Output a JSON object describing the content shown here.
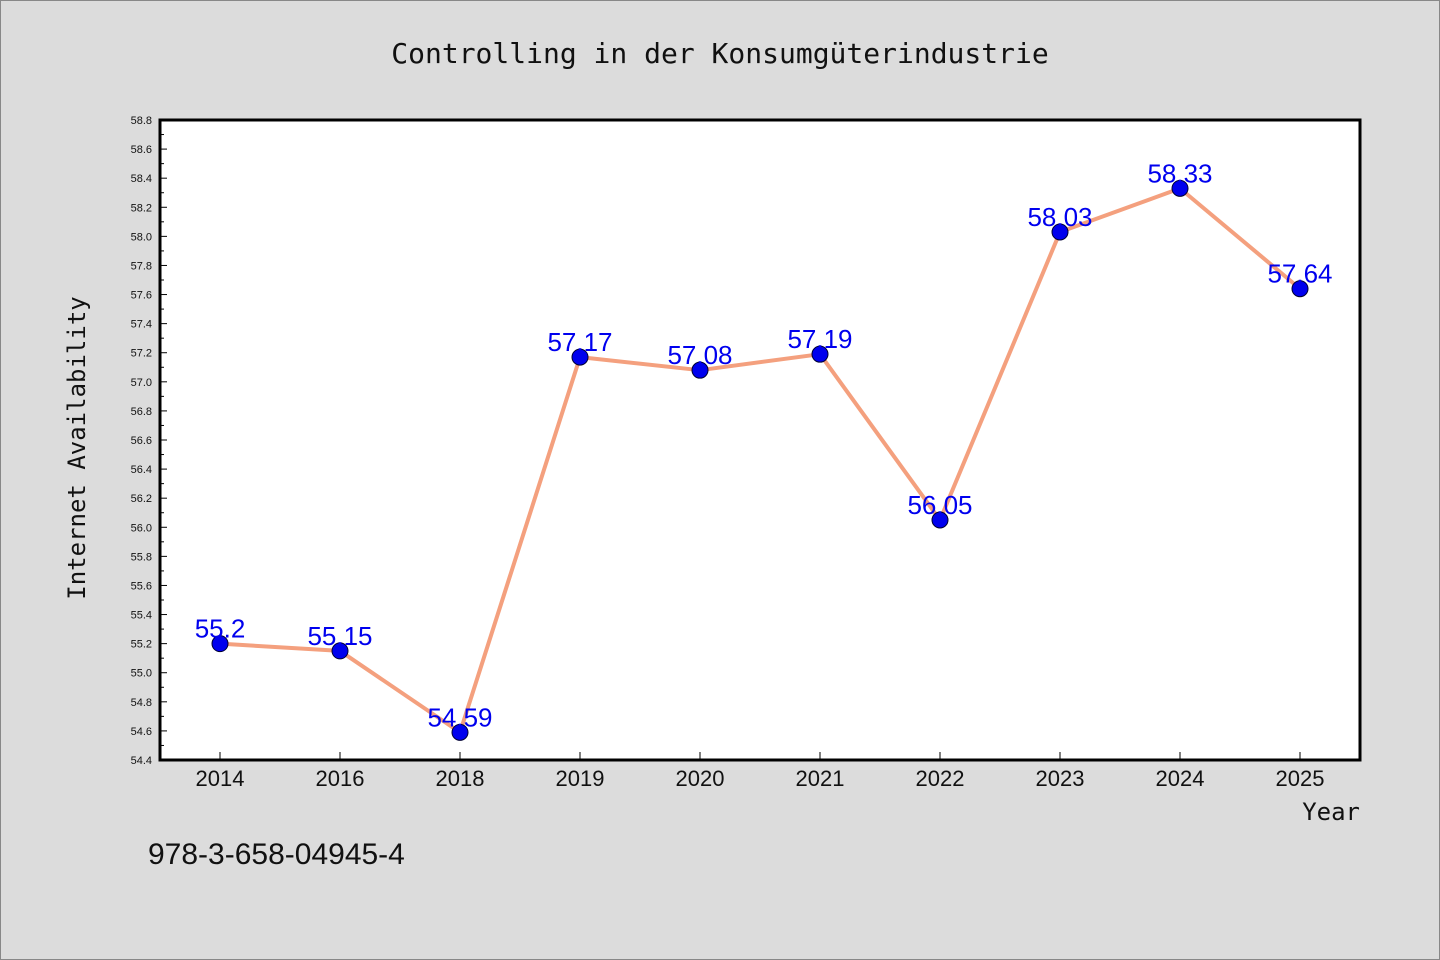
{
  "chart_data": {
    "type": "line",
    "title": "Controlling in der Konsumgüterindustrie",
    "xlabel": "Year",
    "ylabel": "Internet Availability",
    "categories": [
      "2014",
      "2016",
      "2018",
      "2019",
      "2020",
      "2021",
      "2022",
      "2023",
      "2024",
      "2025"
    ],
    "series": [
      {
        "values": [
          55.2,
          55.15,
          54.59,
          57.17,
          57.08,
          57.19,
          56.05,
          58.03,
          58.33,
          57.64
        ],
        "data_labels": [
          "55.2",
          "55.15",
          "54.59",
          "57.17",
          "57.08",
          "57.19",
          "56.05",
          "58.03",
          "58.33",
          "57.64"
        ]
      }
    ],
    "ylim": [
      54.4,
      58.8
    ],
    "yticks": [
      "54.4",
      "54.6",
      "54.8",
      "55.0",
      "55.2",
      "55.4",
      "55.6",
      "55.8",
      "56.0",
      "56.2",
      "56.4",
      "56.6",
      "56.8",
      "57.0",
      "57.2",
      "57.4",
      "57.6",
      "57.8",
      "58.0",
      "58.2",
      "58.4",
      "58.6",
      "58.8"
    ],
    "grid": false,
    "legend": "none",
    "colors": {
      "line": "#f4a07e",
      "marker": "#0000ee",
      "label": "#0000ee",
      "background": "#dcdcdc",
      "plot_bg": "#ffffff"
    }
  },
  "footer": {
    "isbn": "978-3-658-04945-4"
  }
}
